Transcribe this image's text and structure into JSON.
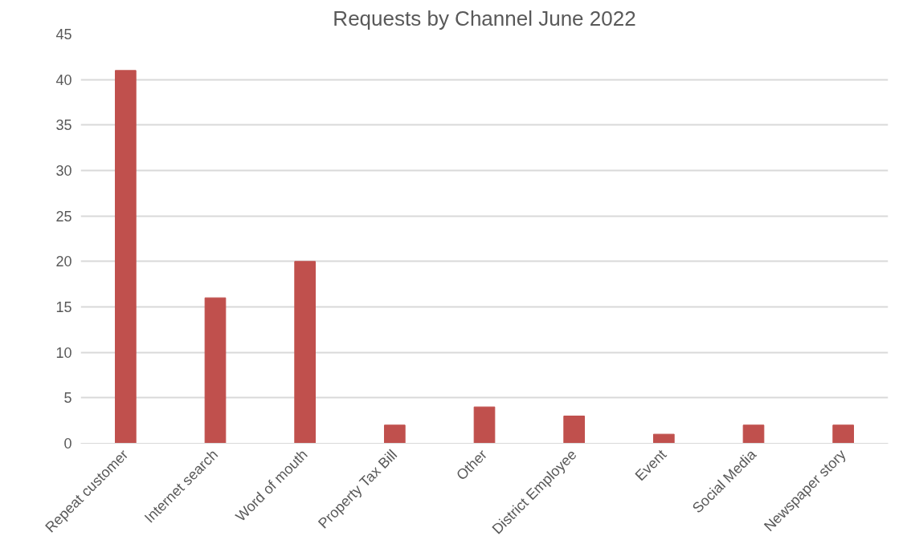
{
  "chart_data": {
    "type": "bar",
    "title": "Requests by Channel June 2022",
    "categories": [
      "Repeat customer",
      "Internet search",
      "Word of mouth",
      "Property Tax Bill",
      "Other",
      "District Employee",
      "Event",
      "Social Media",
      "Newspaper story"
    ],
    "values": [
      41,
      16,
      20,
      2,
      4,
      3,
      1,
      2,
      2
    ],
    "color": "#c0504d",
    "ylim": [
      0,
      45
    ],
    "yticks": [
      0,
      5,
      10,
      15,
      20,
      25,
      30,
      35,
      40,
      45
    ],
    "grid": "y"
  }
}
